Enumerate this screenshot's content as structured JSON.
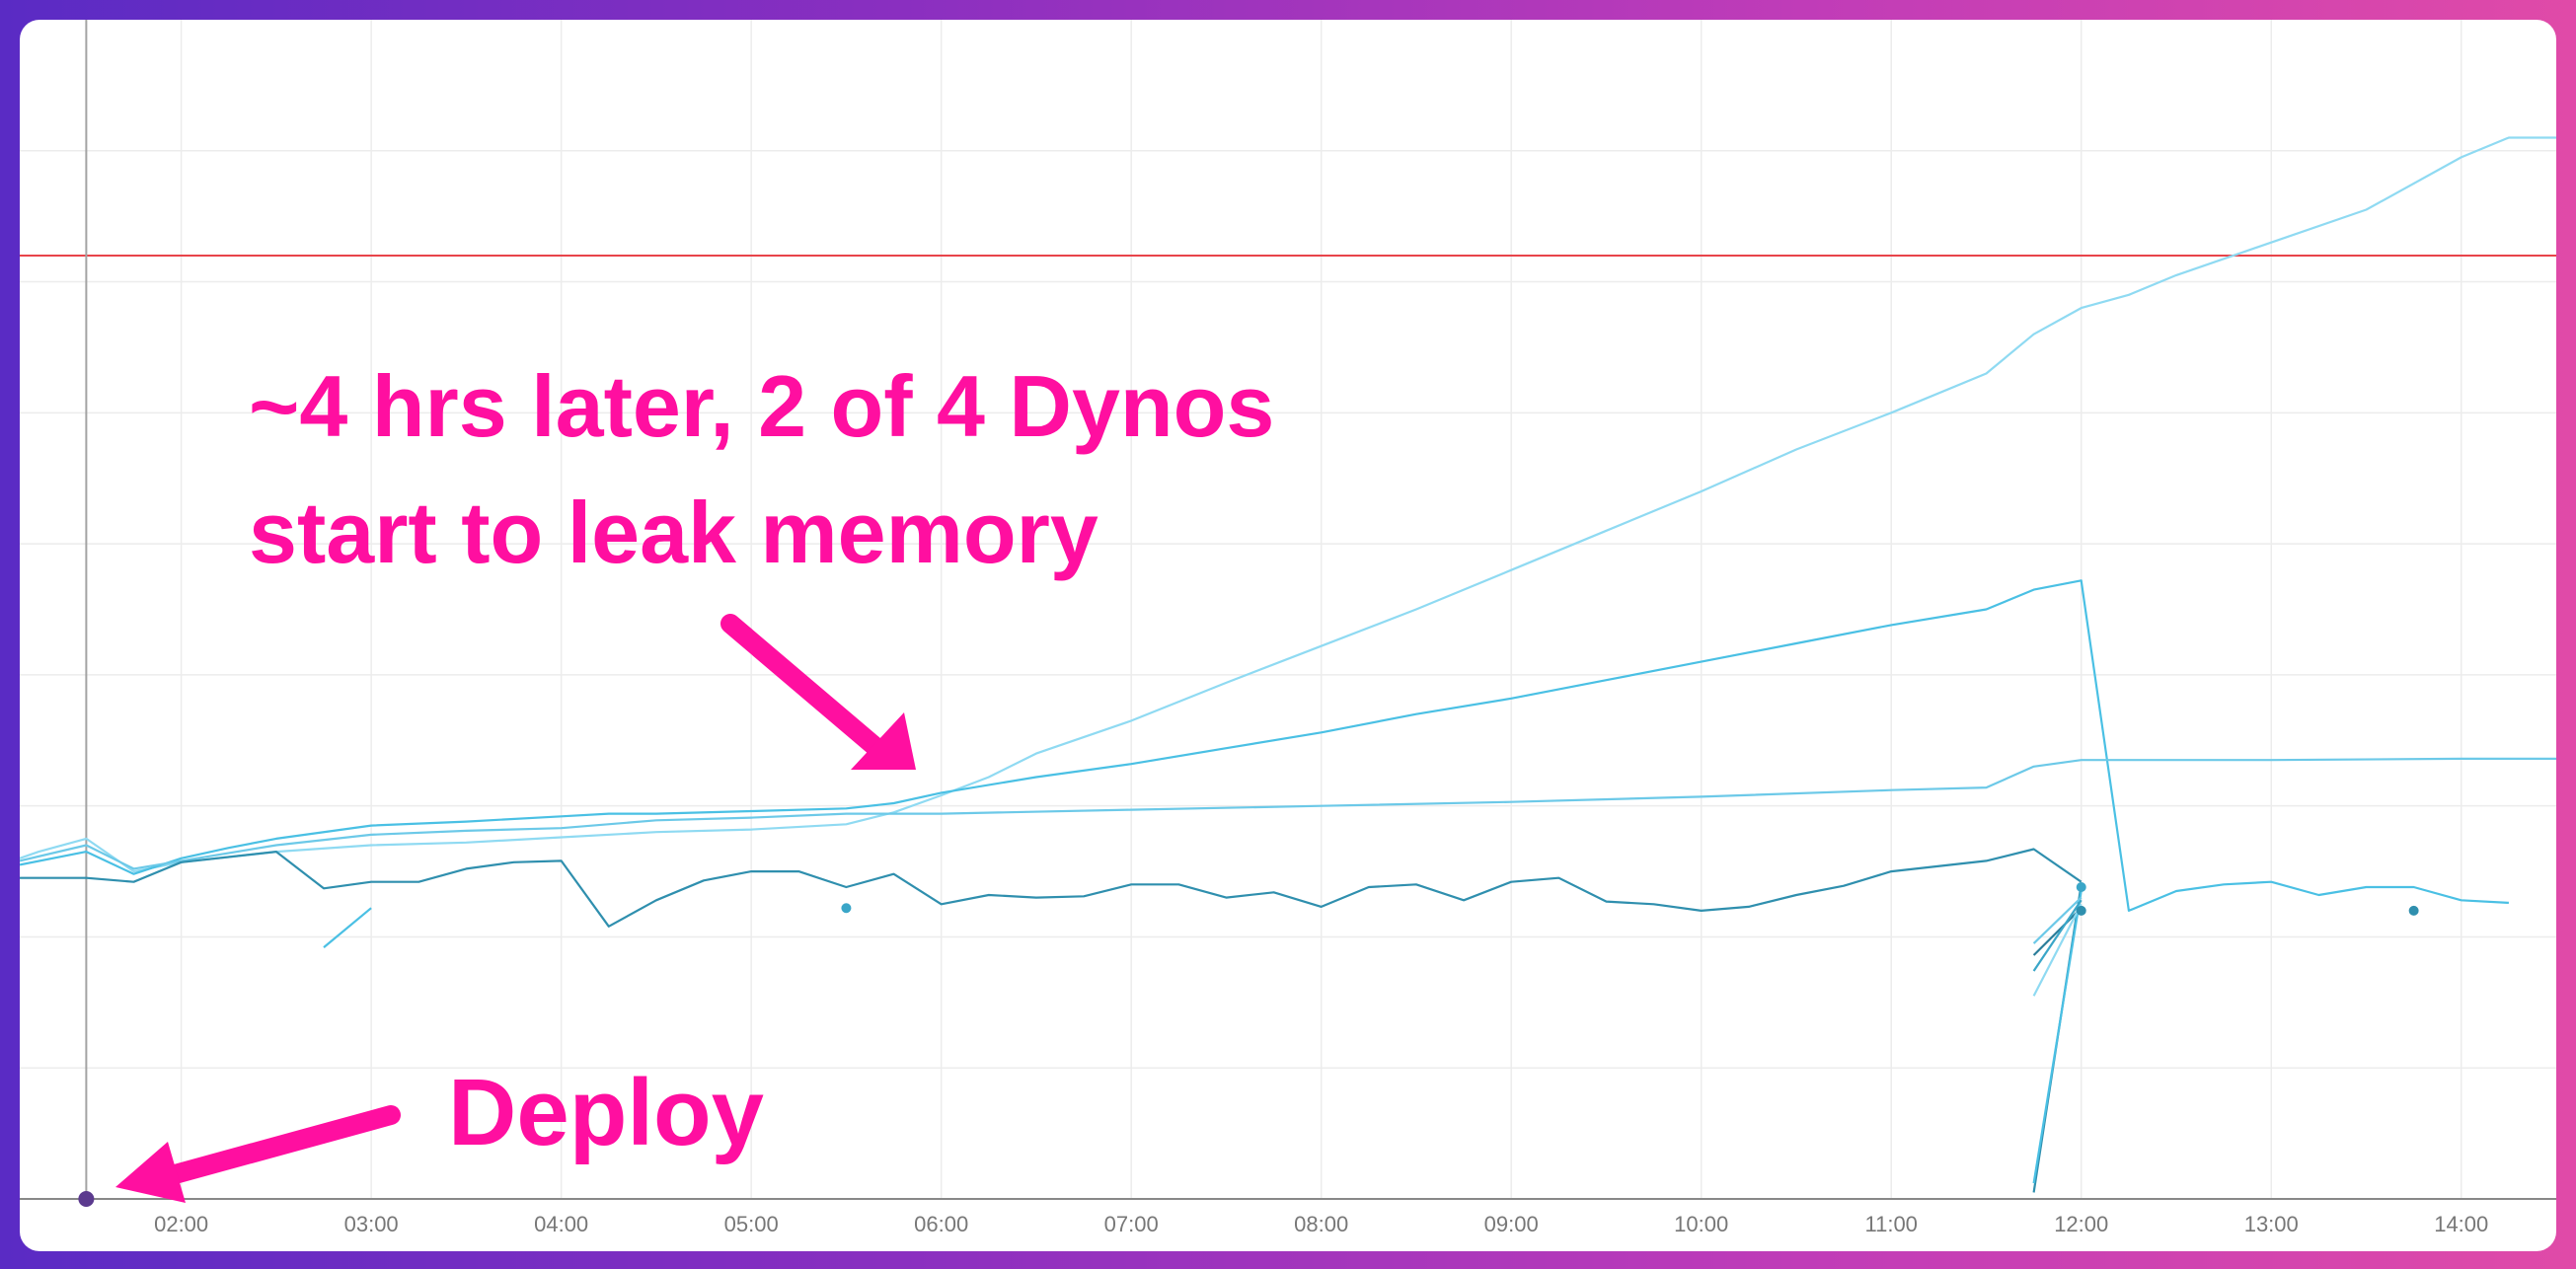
{
  "annotations": {
    "leak_line1": "~4 hrs later, 2 of 4 Dynos",
    "leak_line2": "start to leak memory",
    "deploy": "Deploy"
  },
  "colors": {
    "background_start": "#5a2bc4",
    "background_end": "#e04aa8",
    "annotation": "#ff0fa0",
    "threshold": "#e8434a",
    "series_light": "#8fdaf2",
    "series_mid": "#4ac0e4",
    "series_dark": "#2f8fae",
    "deploy_marker": "#5b3a8e"
  },
  "chart_data": {
    "type": "line",
    "xlabel": "",
    "ylabel": "",
    "x_ticks": [
      "02:00",
      "03:00",
      "04:00",
      "05:00",
      "06:00",
      "07:00",
      "08:00",
      "09:00",
      "10:00",
      "11:00",
      "12:00",
      "13:00",
      "14:00"
    ],
    "xlim": [
      1.15,
      14.5
    ],
    "ylim": [
      0,
      9
    ],
    "grid": true,
    "threshold": 7.2,
    "deploy_time": 1.5,
    "series": [
      {
        "color": "#8fdaf2",
        "points": [
          [
            1.15,
            2.6
          ],
          [
            1.25,
            2.65
          ],
          [
            1.5,
            2.75
          ],
          [
            1.75,
            2.5
          ],
          [
            2,
            2.57
          ],
          [
            2.5,
            2.65
          ],
          [
            3,
            2.7
          ],
          [
            3.5,
            2.72
          ],
          [
            4,
            2.76
          ],
          [
            4.5,
            2.8
          ],
          [
            5,
            2.82
          ],
          [
            5.5,
            2.86
          ],
          [
            5.75,
            2.95
          ],
          [
            6,
            3.08
          ],
          [
            6.25,
            3.22
          ],
          [
            6.5,
            3.4
          ],
          [
            7,
            3.65
          ],
          [
            7.5,
            3.94
          ],
          [
            8,
            4.22
          ],
          [
            8.5,
            4.5
          ],
          [
            9,
            4.8
          ],
          [
            9.5,
            5.1
          ],
          [
            10,
            5.4
          ],
          [
            10.5,
            5.72
          ],
          [
            11,
            6.0
          ],
          [
            11.5,
            6.3
          ],
          [
            11.75,
            6.6
          ],
          [
            12,
            6.8
          ],
          [
            12.25,
            6.9
          ],
          [
            12.5,
            7.05
          ],
          [
            13,
            7.3
          ],
          [
            13.5,
            7.55
          ],
          [
            14,
            7.95
          ],
          [
            14.25,
            8.1
          ],
          [
            14.5,
            8.1
          ]
        ]
      },
      {
        "color": "#4ac0e4",
        "points": [
          [
            1.15,
            2.55
          ],
          [
            1.5,
            2.65
          ],
          [
            1.75,
            2.48
          ],
          [
            2,
            2.6
          ],
          [
            2.25,
            2.68
          ],
          [
            2.5,
            2.75
          ],
          [
            3,
            2.85
          ],
          [
            3.5,
            2.88
          ],
          [
            4,
            2.92
          ],
          [
            4.25,
            2.94
          ],
          [
            4.5,
            2.94
          ],
          [
            5,
            2.96
          ],
          [
            5.5,
            2.98
          ],
          [
            5.75,
            3.02
          ],
          [
            6,
            3.1
          ],
          [
            6.5,
            3.22
          ],
          [
            7,
            3.32
          ],
          [
            7.5,
            3.44
          ],
          [
            8,
            3.56
          ],
          [
            8.5,
            3.7
          ],
          [
            9,
            3.82
          ],
          [
            9.5,
            3.96
          ],
          [
            10,
            4.1
          ],
          [
            10.5,
            4.24
          ],
          [
            11,
            4.38
          ],
          [
            11.5,
            4.5
          ],
          [
            11.75,
            4.65
          ],
          [
            12,
            4.72
          ],
          [
            12.25,
            2.2
          ],
          [
            12.5,
            2.35
          ],
          [
            12.75,
            2.4
          ],
          [
            13,
            2.42
          ],
          [
            13.25,
            2.32
          ],
          [
            13.5,
            2.38
          ],
          [
            13.75,
            2.38
          ],
          [
            14,
            2.28
          ],
          [
            14.25,
            2.26
          ]
        ]
      },
      {
        "color": "#6cc9e8",
        "points": [
          [
            1.15,
            2.58
          ],
          [
            1.5,
            2.7
          ],
          [
            1.75,
            2.52
          ],
          [
            2,
            2.58
          ],
          [
            2.5,
            2.7
          ],
          [
            3,
            2.78
          ],
          [
            3.5,
            2.81
          ],
          [
            4,
            2.83
          ],
          [
            4.5,
            2.89
          ],
          [
            5,
            2.91
          ],
          [
            5.5,
            2.94
          ],
          [
            6,
            2.94
          ],
          [
            7,
            2.97
          ],
          [
            8,
            3.0
          ],
          [
            9,
            3.03
          ],
          [
            10,
            3.07
          ],
          [
            11,
            3.12
          ],
          [
            11.5,
            3.14
          ],
          [
            11.75,
            3.3
          ],
          [
            12,
            3.35
          ],
          [
            13,
            3.35
          ],
          [
            14,
            3.36
          ],
          [
            14.5,
            3.36
          ]
        ]
      },
      {
        "color": "#2f8fae",
        "points": [
          [
            1.15,
            2.45
          ],
          [
            1.5,
            2.45
          ],
          [
            1.75,
            2.42
          ],
          [
            2,
            2.57
          ],
          [
            2.5,
            2.65
          ],
          [
            2.75,
            2.37
          ],
          [
            3,
            2.42
          ],
          [
            3.25,
            2.42
          ],
          [
            3.5,
            2.52
          ],
          [
            3.75,
            2.57
          ],
          [
            4,
            2.58
          ],
          [
            4.25,
            2.08
          ],
          [
            4.5,
            2.28
          ],
          [
            4.75,
            2.43
          ],
          [
            5,
            2.5
          ],
          [
            5.25,
            2.5
          ],
          [
            5.5,
            2.38
          ],
          [
            5.75,
            2.48
          ],
          [
            6,
            2.25
          ],
          [
            6.25,
            2.32
          ],
          [
            6.5,
            2.3
          ],
          [
            6.75,
            2.31
          ],
          [
            7,
            2.4
          ],
          [
            7.25,
            2.4
          ],
          [
            7.5,
            2.3
          ],
          [
            7.75,
            2.34
          ],
          [
            8,
            2.23
          ],
          [
            8.25,
            2.38
          ],
          [
            8.5,
            2.4
          ],
          [
            8.75,
            2.28
          ],
          [
            9,
            2.42
          ],
          [
            9.25,
            2.45
          ],
          [
            9.5,
            2.27
          ],
          [
            9.75,
            2.25
          ],
          [
            10,
            2.2
          ],
          [
            10.25,
            2.23
          ],
          [
            10.5,
            2.32
          ],
          [
            10.75,
            2.39
          ],
          [
            11,
            2.5
          ],
          [
            11.5,
            2.58
          ],
          [
            11.75,
            2.67
          ],
          [
            12,
            2.42
          ]
        ]
      },
      {
        "color": "#4ac0e4",
        "points": [
          [
            2.75,
            1.92
          ],
          [
            3,
            2.22
          ]
        ]
      },
      {
        "color": "#2f8fae",
        "points": [
          [
            11.75,
            0.05
          ],
          [
            12,
            2.4
          ]
        ]
      },
      {
        "color": "#4ac0e4",
        "points": [
          [
            11.75,
            0.12
          ],
          [
            12,
            2.35
          ]
        ]
      },
      {
        "color": "#2a7d9a",
        "points": [
          [
            11.75,
            1.86
          ],
          [
            12,
            2.22
          ]
        ]
      },
      {
        "color": "#6cc9e8",
        "points": [
          [
            11.75,
            1.95
          ],
          [
            12,
            2.3
          ]
        ]
      },
      {
        "color": "#8fdaf2",
        "points": [
          [
            11.75,
            1.55
          ],
          [
            12,
            2.25
          ]
        ]
      },
      {
        "color": "#3aa6c8",
        "points": [
          [
            11.75,
            1.74
          ],
          [
            12,
            2.28
          ]
        ]
      }
    ],
    "markers": [
      {
        "color": "#3aa6c8",
        "x": 5.5,
        "y": 2.22
      },
      {
        "color": "#2f8fae",
        "x": 13.75,
        "y": 2.2
      },
      {
        "color": "#3aa6c8",
        "x": 12,
        "y": 2.38
      },
      {
        "color": "#2f8fae",
        "x": 12,
        "y": 2.2
      }
    ]
  }
}
